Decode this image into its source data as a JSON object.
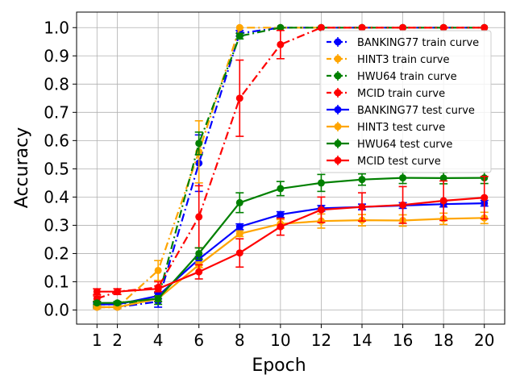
{
  "chart_data": {
    "type": "line",
    "title": "",
    "xlabel": "Epoch",
    "ylabel": "Accuracy",
    "xlim": [
      0,
      21
    ],
    "ylim": [
      -0.05,
      1.055
    ],
    "xticks": [
      1,
      2,
      4,
      6,
      8,
      10,
      12,
      14,
      16,
      18,
      20
    ],
    "yticks": [
      0.0,
      0.1,
      0.2,
      0.3,
      0.4,
      0.5,
      0.6,
      0.7,
      0.8,
      0.9,
      1.0
    ],
    "grid": true,
    "legend_position": "top-right",
    "x": [
      1,
      2,
      4,
      6,
      8,
      10,
      12,
      14,
      16,
      18,
      20
    ],
    "series": [
      {
        "name": "BANKING77 train curve",
        "color": "#0000ff",
        "style": "dashdot",
        "values": [
          0.01,
          0.01,
          0.03,
          0.52,
          0.98,
          1.0,
          1.0,
          1.0,
          1.0,
          1.0,
          1.0
        ],
        "errors": [
          0.005,
          0.005,
          0.02,
          0.1,
          0.01,
          0.0,
          0.0,
          0.0,
          0.0,
          0.0,
          0.0
        ]
      },
      {
        "name": "HINT3 train curve",
        "color": "#ffa500",
        "style": "dashdot",
        "values": [
          0.01,
          0.01,
          0.14,
          0.56,
          1.0,
          1.0,
          1.0,
          1.0,
          1.0,
          1.0,
          1.0
        ],
        "errors": [
          0.005,
          0.005,
          0.035,
          0.11,
          0.0,
          0.0,
          0.0,
          0.0,
          0.0,
          0.0,
          0.0
        ]
      },
      {
        "name": "HWU64 train curve",
        "color": "#008000",
        "style": "dashdot",
        "values": [
          0.02,
          0.02,
          0.04,
          0.59,
          0.97,
          1.0,
          1.0,
          1.0,
          1.0,
          1.0,
          1.0
        ],
        "errors": [
          0.01,
          0.01,
          0.02,
          0.04,
          0.01,
          0.0,
          0.0,
          0.0,
          0.0,
          0.0,
          0.0
        ]
      },
      {
        "name": "MCID train curve",
        "color": "#ff0000",
        "style": "dashdot",
        "values": [
          0.04,
          0.065,
          0.08,
          0.33,
          0.75,
          0.94,
          1.0,
          1.0,
          1.0,
          1.0,
          1.0
        ],
        "errors": [
          0.01,
          0.01,
          0.02,
          0.11,
          0.135,
          0.05,
          0.0,
          0.0,
          0.0,
          0.0,
          0.0
        ]
      },
      {
        "name": "BANKING77 test curve",
        "color": "#0000ff",
        "style": "solid",
        "values": [
          0.02,
          0.02,
          0.05,
          0.18,
          0.295,
          0.338,
          0.36,
          0.365,
          0.37,
          0.375,
          0.378
        ],
        "errors": [
          0.005,
          0.005,
          0.01,
          0.01,
          0.01,
          0.01,
          0.01,
          0.01,
          0.01,
          0.01,
          0.01
        ]
      },
      {
        "name": "HINT3 test curve",
        "color": "#ffa500",
        "style": "solid",
        "values": [
          0.01,
          0.01,
          0.04,
          0.16,
          0.27,
          0.305,
          0.315,
          0.318,
          0.317,
          0.323,
          0.326
        ],
        "errors": [
          0.005,
          0.005,
          0.01,
          0.01,
          0.01,
          0.015,
          0.025,
          0.02,
          0.02,
          0.02,
          0.02
        ]
      },
      {
        "name": "HWU64 test curve",
        "color": "#008000",
        "style": "solid",
        "values": [
          0.025,
          0.025,
          0.04,
          0.2,
          0.38,
          0.43,
          0.45,
          0.462,
          0.468,
          0.467,
          0.468
        ],
        "errors": [
          0.005,
          0.005,
          0.01,
          0.02,
          0.035,
          0.025,
          0.03,
          0.02,
          0.02,
          0.02,
          0.02
        ]
      },
      {
        "name": "MCID test curve",
        "color": "#ff0000",
        "style": "solid",
        "values": [
          0.065,
          0.065,
          0.075,
          0.135,
          0.202,
          0.295,
          0.355,
          0.365,
          0.372,
          0.387,
          0.398
        ],
        "errors": [
          0.01,
          0.01,
          0.01,
          0.025,
          0.05,
          0.03,
          0.045,
          0.05,
          0.065,
          0.07,
          0.075
        ]
      }
    ]
  }
}
